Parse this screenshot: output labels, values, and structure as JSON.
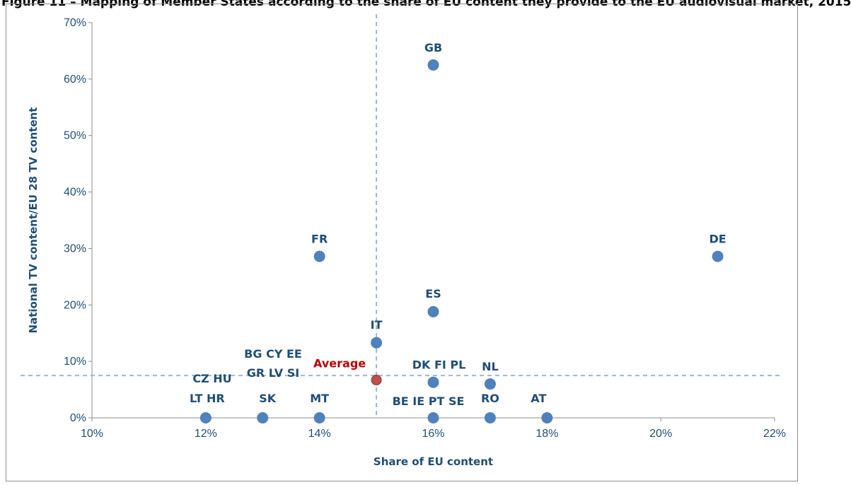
{
  "caption": "Figure 11 – Mapping of Member States according to the share of EU content they provide to the EU audiovisual market, 2015",
  "chart_data": {
    "type": "scatter",
    "xlabel": "Share of EU content",
    "ylabel": "National TV content/EU 28 TV content",
    "xlim": [
      0.1,
      0.22
    ],
    "ylim": [
      0.0,
      0.7
    ],
    "x_ticks": [
      {
        "value": 0.1,
        "label": "10%"
      },
      {
        "value": 0.12,
        "label": "12%"
      },
      {
        "value": 0.14,
        "label": "14%"
      },
      {
        "value": 0.16,
        "label": "16%"
      },
      {
        "value": 0.18,
        "label": "18%"
      },
      {
        "value": 0.2,
        "label": "20%"
      },
      {
        "value": 0.22,
        "label": "22%"
      }
    ],
    "y_ticks": [
      {
        "value": 0.0,
        "label": "0%"
      },
      {
        "value": 0.1,
        "label": "10%"
      },
      {
        "value": 0.2,
        "label": "20%"
      },
      {
        "value": 0.3,
        "label": "30%"
      },
      {
        "value": 0.4,
        "label": "40%"
      },
      {
        "value": 0.5,
        "label": "50%"
      },
      {
        "value": 0.6,
        "label": "60%"
      },
      {
        "value": 0.7,
        "label": "70%"
      }
    ],
    "grid": false,
    "reference_lines": {
      "x": 0.15,
      "y": 0.075
    },
    "points": [
      {
        "label": "GB",
        "x": 0.16,
        "y": 0.625
      },
      {
        "label": "FR",
        "x": 0.14,
        "y": 0.286
      },
      {
        "label": "DE",
        "x": 0.21,
        "y": 0.286
      },
      {
        "label": "ES",
        "x": 0.16,
        "y": 0.188
      },
      {
        "label": "IT",
        "x": 0.15,
        "y": 0.133
      },
      {
        "label": "DK FI PL",
        "x": 0.16,
        "y": 0.063
      },
      {
        "label": "NL",
        "x": 0.17,
        "y": 0.06
      },
      {
        "label": "LT HR",
        "x": 0.12,
        "y": 0.0
      },
      {
        "label": "SK",
        "x": 0.13,
        "y": 0.0
      },
      {
        "label": "MT",
        "x": 0.14,
        "y": 0.0
      },
      {
        "label": "BE IE PT SE",
        "x": 0.16,
        "y": 0.0
      },
      {
        "label": "RO",
        "x": 0.17,
        "y": 0.0
      },
      {
        "label": "AT",
        "x": 0.18,
        "y": 0.0
      }
    ],
    "average": {
      "label": "Average",
      "x": 0.15,
      "y": 0.067
    },
    "extra_labels": [
      {
        "text": "CZ HU",
        "near": "LT HR"
      },
      {
        "text": "GR LV SI",
        "near": "SK"
      },
      {
        "text": "BG CY EE",
        "near": "SK"
      }
    ],
    "colors": {
      "point": "#4f81bd",
      "average": "#c0504d",
      "axis_text": "#1f4e79",
      "ref_line": "#9db7d8",
      "average_text": "#c00000"
    }
  }
}
